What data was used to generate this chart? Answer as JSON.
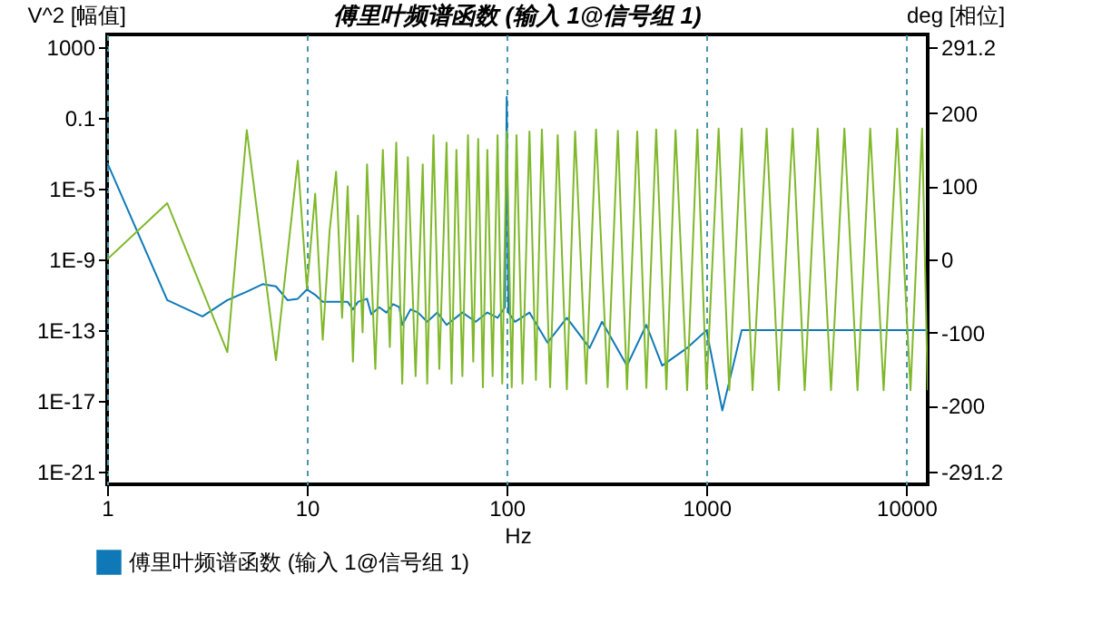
{
  "chart_data": {
    "type": "line",
    "title": "傅里叶频谱函数 (输入 1@信号组 1)",
    "xlabel": "Hz",
    "ylabel": "V^2 [幅值]",
    "y2label": "deg [相位]",
    "log": "xy",
    "grid": "x",
    "legend": "bottom left",
    "xlim": [
      1,
      12800
    ],
    "xticks": [
      1,
      10,
      100,
      1000,
      10000
    ],
    "ylim": [
      2e-22,
      5000
    ],
    "yticks": [
      1000,
      0.1,
      {
        "value": 1e-05,
        "label": "1E-5"
      },
      {
        "value": 1e-09,
        "label": "1E-9"
      },
      {
        "value": 1e-13,
        "label": "1E-13"
      },
      {
        "value": 1e-17,
        "label": "1E-17"
      },
      {
        "value": 1e-21,
        "label": "1E-21"
      }
    ],
    "y2lim": [
      -308,
      308
    ],
    "y2ticks": [
      291.2,
      200,
      100,
      0,
      -100,
      -200,
      -291.2
    ],
    "series": [
      {
        "name": "傅里叶频谱函数 (输入 1@信号组 1)",
        "color": "#0f79b8",
        "x": [
          1,
          2,
          3,
          4,
          5,
          6,
          7,
          8,
          9,
          10,
          11,
          12,
          14,
          16,
          17,
          18,
          20,
          21,
          23,
          25,
          27,
          29,
          30,
          33,
          36,
          40,
          45,
          50,
          60,
          70,
          80,
          90,
          98,
          100,
          102,
          110,
          130,
          160,
          200,
          260,
          300,
          400,
          500,
          600,
          800,
          1000,
          1200,
          1500,
          3000,
          12800
        ],
        "values": [
          0.0003,
          5e-12,
          6e-13,
          5e-12,
          1.5e-11,
          4e-11,
          3e-11,
          5e-12,
          6e-12,
          2e-11,
          1e-11,
          4e-12,
          4e-12,
          4e-12,
          1.5e-12,
          4e-12,
          6e-12,
          8e-13,
          2e-12,
          1e-12,
          3e-12,
          2e-12,
          2e-13,
          1.5e-12,
          1e-12,
          3e-13,
          1e-12,
          2e-13,
          1e-12,
          3e-13,
          1e-12,
          5e-13,
          2e-12,
          1.5,
          1e-12,
          3e-13,
          1e-12,
          2e-14,
          5e-13,
          1e-14,
          3e-13,
          1e-15,
          2e-13,
          1e-15,
          1e-14,
          1e-13,
          3e-18,
          1e-13,
          1e-13,
          1e-13
        ]
      },
      {
        "color": "#7fb82a",
        "axis": "y2",
        "x": [
          1,
          2,
          4,
          5,
          7,
          9,
          10,
          11,
          12,
          13,
          14,
          15,
          16,
          17,
          18,
          19,
          20,
          22,
          24,
          26,
          28,
          30,
          32,
          35,
          38,
          40,
          43,
          46,
          50,
          53,
          56,
          60,
          64,
          68,
          72,
          76,
          80,
          85,
          90,
          95,
          100,
          106,
          112,
          120,
          130,
          140,
          150,
          165,
          180,
          200,
          220,
          250,
          280,
          320,
          360,
          400,
          450,
          500,
          560,
          630,
          700,
          800,
          900,
          1000,
          1150,
          1300,
          1500,
          1700,
          2000,
          2300,
          2700,
          3100,
          3600,
          4200,
          4900,
          5700,
          6600,
          7700,
          9000,
          10500,
          12000,
          12800
        ],
        "values": [
          0,
          77,
          -127,
          177,
          -138,
          135,
          -40,
          90,
          -110,
          40,
          120,
          -80,
          100,
          -140,
          60,
          -100,
          130,
          -150,
          150,
          -120,
          160,
          -170,
          140,
          -160,
          130,
          -170,
          170,
          -150,
          160,
          -170,
          150,
          -160,
          170,
          -140,
          165,
          -175,
          150,
          -160,
          170,
          -170,
          175,
          -175,
          170,
          -170,
          175,
          -165,
          178,
          -175,
          170,
          -178,
          175,
          -170,
          178,
          -175,
          176,
          -178,
          175,
          -176,
          178,
          -178,
          177,
          -179,
          178,
          -178,
          179,
          -179,
          179,
          -179,
          179,
          -179,
          179,
          -179,
          179,
          -179,
          179,
          -179,
          179,
          -179,
          179,
          -179,
          179,
          -179
        ]
      }
    ]
  }
}
